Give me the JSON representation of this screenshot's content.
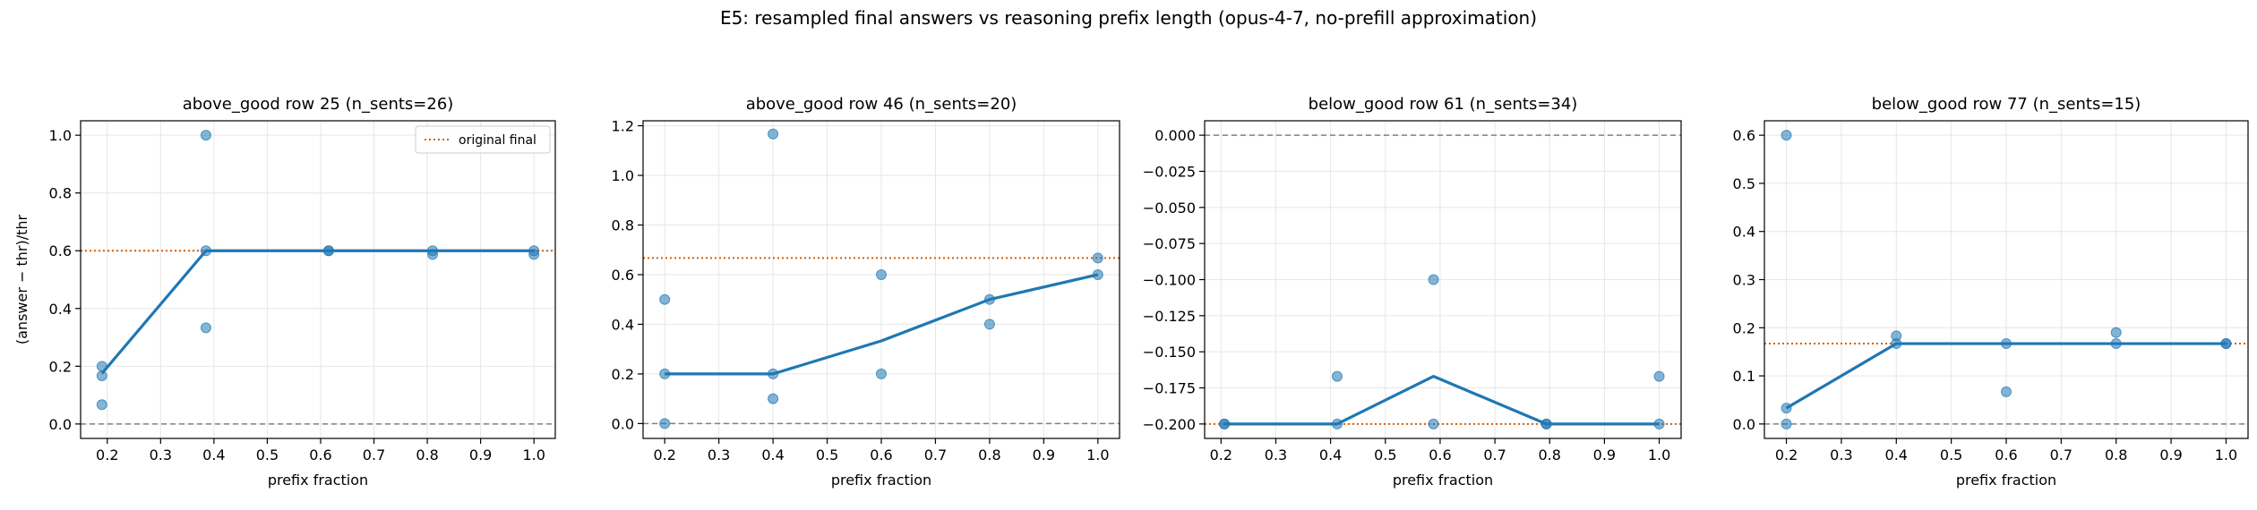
{
  "figure": {
    "suptitle": "E5: resampled final answers vs reasoning prefix length (opus-4-7, no-prefill approximation)"
  },
  "colors": {
    "mean_line": "#1f77b4",
    "points": "#1f77b4",
    "original_final": "#d95f02",
    "zero_line": "#808080",
    "grid": "#e6e6e6"
  },
  "chart_data": [
    {
      "type": "line",
      "title": "above_good row 25 (n_sents=26)",
      "xlabel": "prefix fraction",
      "ylabel": "(answer − thr)/thr",
      "xlim": [
        0.15,
        1.04
      ],
      "ylim": [
        -0.05,
        1.05
      ],
      "xticks": [
        0.2,
        0.3,
        0.4,
        0.5,
        0.6,
        0.7,
        0.8,
        0.9,
        1.0
      ],
      "yticks": [
        0.0,
        0.2,
        0.4,
        0.6,
        0.8,
        1.0
      ],
      "ytick_labels": [
        "0.0",
        "0.2",
        "0.4",
        "0.6",
        "0.8",
        "1.0"
      ],
      "grid": true,
      "legend": {
        "position": "top-right",
        "label": "original final"
      },
      "original_final": 0.6,
      "zero_line": 0.0,
      "mean_line": {
        "x": [
          0.19,
          0.385,
          0.615,
          0.81,
          1.0
        ],
        "y": [
          0.175,
          0.6,
          0.6,
          0.6,
          0.6
        ]
      },
      "samples": {
        "x": [
          0.19,
          0.19,
          0.19,
          0.385,
          0.385,
          0.385,
          0.615,
          0.615,
          0.81,
          0.81,
          1.0,
          1.0
        ],
        "y": [
          0.2,
          0.167,
          0.067,
          1.0,
          0.6,
          0.333,
          0.6,
          0.6,
          0.6,
          0.587,
          0.6,
          0.587
        ]
      }
    },
    {
      "type": "line",
      "title": "above_good row 46 (n_sents=20)",
      "xlabel": "prefix fraction",
      "ylabel": "",
      "xlim": [
        0.16,
        1.04
      ],
      "ylim": [
        -0.06,
        1.22
      ],
      "xticks": [
        0.2,
        0.3,
        0.4,
        0.5,
        0.6,
        0.7,
        0.8,
        0.9,
        1.0
      ],
      "yticks": [
        0.0,
        0.2,
        0.4,
        0.6,
        0.8,
        1.0,
        1.2
      ],
      "ytick_labels": [
        "0.0",
        "0.2",
        "0.4",
        "0.6",
        "0.8",
        "1.0",
        "1.2"
      ],
      "grid": true,
      "original_final": 0.667,
      "zero_line": 0.0,
      "mean_line": {
        "x": [
          0.2,
          0.4,
          0.6,
          0.8,
          1.0
        ],
        "y": [
          0.2,
          0.2,
          0.333,
          0.5,
          0.6
        ]
      },
      "samples": {
        "x": [
          0.2,
          0.2,
          0.2,
          0.4,
          0.4,
          0.4,
          0.6,
          0.6,
          0.8,
          0.8,
          1.0,
          1.0
        ],
        "y": [
          0.5,
          0.2,
          0.0,
          1.167,
          0.2,
          0.1,
          0.6,
          0.2,
          0.5,
          0.4,
          0.667,
          0.6
        ]
      }
    },
    {
      "type": "line",
      "title": "below_good row 61 (n_sents=34)",
      "xlabel": "prefix fraction",
      "ylabel": "",
      "xlim": [
        0.17,
        1.04
      ],
      "ylim": [
        -0.21,
        0.01
      ],
      "xticks": [
        0.2,
        0.3,
        0.4,
        0.5,
        0.6,
        0.7,
        0.8,
        0.9,
        1.0
      ],
      "yticks": [
        0.0,
        -0.025,
        -0.05,
        -0.075,
        -0.1,
        -0.125,
        -0.15,
        -0.175,
        -0.2
      ],
      "ytick_labels": [
        "0.000",
        "−0.025",
        "−0.050",
        "−0.075",
        "−0.100",
        "−0.125",
        "−0.150",
        "−0.175",
        "−0.200"
      ],
      "grid": true,
      "original_final": -0.2,
      "zero_line": 0.0,
      "mean_line": {
        "x": [
          0.206,
          0.412,
          0.588,
          0.794,
          1.0
        ],
        "y": [
          -0.2,
          -0.2,
          -0.167,
          -0.2,
          -0.2
        ]
      },
      "samples": {
        "x": [
          0.206,
          0.206,
          0.412,
          0.412,
          0.588,
          0.588,
          0.794,
          0.794,
          1.0,
          1.0
        ],
        "y": [
          -0.2,
          -0.2,
          -0.167,
          -0.2,
          -0.1,
          -0.2,
          -0.2,
          -0.2,
          -0.167,
          -0.2
        ]
      }
    },
    {
      "type": "line",
      "title": "below_good row 77 (n_sents=15)",
      "xlabel": "prefix fraction",
      "ylabel": "",
      "xlim": [
        0.16,
        1.04
      ],
      "ylim": [
        -0.03,
        0.63
      ],
      "xticks": [
        0.2,
        0.3,
        0.4,
        0.5,
        0.6,
        0.7,
        0.8,
        0.9,
        1.0
      ],
      "yticks": [
        0.0,
        0.1,
        0.2,
        0.3,
        0.4,
        0.5,
        0.6
      ],
      "ytick_labels": [
        "0.0",
        "0.1",
        "0.2",
        "0.3",
        "0.4",
        "0.5",
        "0.6"
      ],
      "grid": true,
      "original_final": 0.167,
      "zero_line": 0.0,
      "mean_line": {
        "x": [
          0.2,
          0.4,
          0.6,
          0.8,
          1.0
        ],
        "y": [
          0.033,
          0.167,
          0.167,
          0.167,
          0.167
        ]
      },
      "samples": {
        "x": [
          0.2,
          0.2,
          0.2,
          0.4,
          0.4,
          0.6,
          0.6,
          0.8,
          0.8,
          1.0,
          1.0
        ],
        "y": [
          0.6,
          0.033,
          0.0,
          0.183,
          0.167,
          0.167,
          0.067,
          0.19,
          0.167,
          0.167,
          0.167
        ]
      }
    }
  ]
}
